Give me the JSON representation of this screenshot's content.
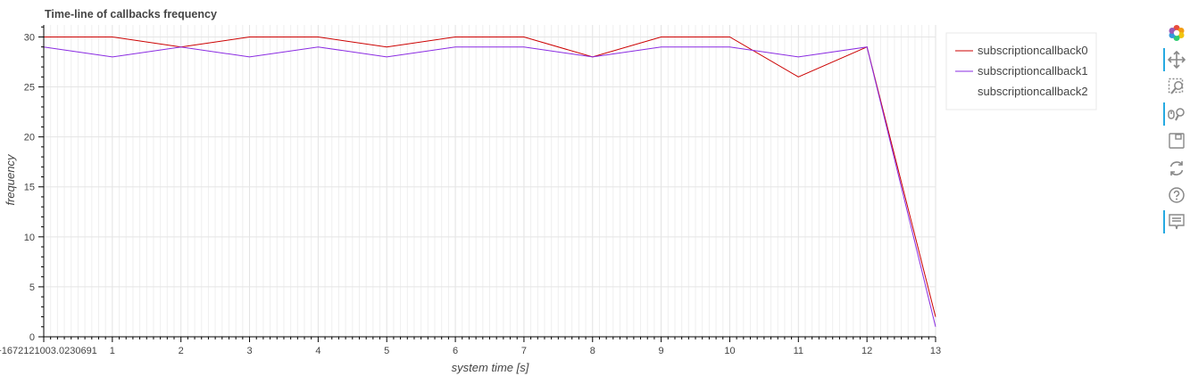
{
  "chart_data": {
    "type": "line",
    "title": "Time-line of callbacks frequency",
    "xlabel": "system time [s]",
    "ylabel": "frequency",
    "x_offset_label": "0+1672121003.0230691",
    "xlim": [
      0,
      13
    ],
    "ylim": [
      0,
      31.2
    ],
    "x_ticks": [
      1,
      2,
      3,
      4,
      5,
      6,
      7,
      8,
      9,
      10,
      11,
      12,
      13
    ],
    "y_ticks": [
      0,
      5,
      10,
      15,
      20,
      25,
      30
    ],
    "grid": true,
    "legend_position": "top-right, outside plot",
    "series": [
      {
        "name": "subscriptioncallback0",
        "color": "#cc0000",
        "x": [
          0,
          1,
          2,
          3,
          4,
          5,
          6,
          7,
          8,
          9,
          10,
          11,
          12,
          13
        ],
        "y": [
          30,
          30,
          29,
          30,
          30,
          29,
          30,
          30,
          28,
          30,
          30,
          26,
          29,
          2
        ]
      },
      {
        "name": "subscriptioncallback1",
        "color": "#8a2be2",
        "x": [
          0,
          1,
          2,
          3,
          4,
          5,
          6,
          7,
          8,
          9,
          10,
          11,
          12,
          13
        ],
        "y": [
          29,
          28,
          29,
          28,
          29,
          28,
          29,
          29,
          28,
          29,
          29,
          28,
          29,
          1
        ]
      },
      {
        "name": "subscriptioncallback2",
        "color": "#ffffff",
        "x": [],
        "y": []
      }
    ]
  },
  "toolbar": {
    "tools": [
      {
        "name": "bokeh-logo-icon",
        "active": false
      },
      {
        "name": "pan-icon",
        "active": true
      },
      {
        "name": "box-zoom-icon",
        "active": false
      },
      {
        "name": "wheel-zoom-icon",
        "active": true
      },
      {
        "name": "save-icon",
        "active": false
      },
      {
        "name": "reset-icon",
        "active": false
      },
      {
        "name": "help-icon",
        "active": false
      },
      {
        "name": "hover-icon",
        "active": true
      }
    ]
  }
}
